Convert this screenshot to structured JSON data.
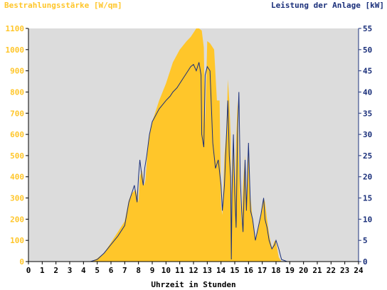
{
  "colors": {
    "irradiance": "#ffc62a",
    "power": "#1a2f7a",
    "plot_background": "#dcdcdc",
    "axis": "#000000"
  },
  "chart_data": {
    "type": "area",
    "left_axis_title": "Bestrahlungsstärke [W/qm]",
    "right_axis_title": "Leistung der Anlage [kW]",
    "xlabel": "Uhrzeit in Stunden",
    "xlim": [
      0,
      24
    ],
    "x_ticks": [
      0,
      1,
      2,
      3,
      4,
      5,
      6,
      7,
      8,
      9,
      10,
      11,
      12,
      13,
      14,
      15,
      16,
      17,
      18,
      19,
      20,
      21,
      22,
      23,
      24
    ],
    "y_left_lim": [
      0,
      1100
    ],
    "y_left_ticks": [
      0,
      100,
      200,
      300,
      400,
      500,
      600,
      700,
      800,
      900,
      1000,
      1100
    ],
    "y_right_lim": [
      0,
      55
    ],
    "y_right_ticks": [
      0,
      5,
      10,
      15,
      20,
      25,
      30,
      35,
      40,
      45,
      50,
      55
    ],
    "series": [
      {
        "name": "Bestrahlungsstärke",
        "unit": "W/qm",
        "axis": "left",
        "style": "area",
        "x": [
          0,
          4.6,
          5.0,
          5.5,
          6.0,
          6.5,
          7.0,
          7.3,
          7.5,
          7.8,
          8.0,
          8.1,
          8.25,
          8.4,
          8.5,
          8.7,
          9.0,
          9.5,
          10.0,
          10.5,
          11.0,
          11.5,
          11.8,
          12.0,
          12.2,
          12.4,
          12.6,
          12.75,
          12.85,
          13.0,
          13.2,
          13.5,
          13.7,
          13.9,
          14.0,
          14.1,
          14.25,
          14.4,
          14.5,
          14.6,
          14.7,
          14.75,
          14.8,
          14.9,
          15.0,
          15.1,
          15.2,
          15.3,
          15.4,
          15.5,
          15.6,
          15.75,
          15.85,
          16.0,
          16.15,
          16.3,
          16.5,
          16.7,
          16.9,
          17.1,
          17.2,
          17.35,
          17.5,
          17.7,
          17.9,
          18.0,
          18.2,
          18.4,
          18.8,
          19.0,
          24
        ],
        "values": [
          0,
          0,
          15,
          40,
          90,
          140,
          190,
          290,
          320,
          340,
          280,
          400,
          430,
          360,
          380,
          560,
          660,
          760,
          840,
          940,
          1000,
          1040,
          1060,
          1080,
          1100,
          1100,
          1090,
          1010,
          640,
          1040,
          1030,
          1000,
          760,
          760,
          260,
          220,
          500,
          620,
          860,
          760,
          600,
          10,
          380,
          620,
          280,
          560,
          760,
          480,
          300,
          180,
          360,
          500,
          260,
          530,
          300,
          200,
          100,
          160,
          220,
          300,
          280,
          200,
          130,
          60,
          100,
          90,
          20,
          0,
          0,
          0,
          0
        ]
      },
      {
        "name": "Leistung der Anlage",
        "unit": "kW",
        "axis": "right",
        "style": "line",
        "x": [
          0,
          4.5,
          5.0,
          5.5,
          6.0,
          6.5,
          7.0,
          7.3,
          7.5,
          7.7,
          7.9,
          8.0,
          8.1,
          8.25,
          8.35,
          8.45,
          8.6,
          8.8,
          9.0,
          9.5,
          10.0,
          10.3,
          10.5,
          10.8,
          11.0,
          11.2,
          11.4,
          11.6,
          11.8,
          12.0,
          12.2,
          12.4,
          12.55,
          12.6,
          12.75,
          12.85,
          13.0,
          13.2,
          13.4,
          13.6,
          13.8,
          14.0,
          14.1,
          14.25,
          14.4,
          14.5,
          14.6,
          14.7,
          14.75,
          14.8,
          14.9,
          15.0,
          15.1,
          15.2,
          15.3,
          15.4,
          15.5,
          15.6,
          15.75,
          15.85,
          16.0,
          16.15,
          16.3,
          16.5,
          16.7,
          16.9,
          17.1,
          17.2,
          17.35,
          17.5,
          17.7,
          17.9,
          18.0,
          18.2,
          18.4,
          18.8,
          19.0,
          24
        ],
        "values": [
          0,
          0,
          0.5,
          2,
          4,
          6,
          8.5,
          14,
          16,
          18,
          14,
          20,
          24,
          20,
          18,
          22,
          25,
          30,
          33,
          36,
          38,
          39,
          40,
          41,
          42,
          43,
          44,
          45,
          46,
          46.5,
          45,
          47,
          44,
          30,
          27,
          44,
          46,
          45,
          28,
          22,
          24,
          18,
          12,
          18,
          30,
          38,
          25,
          20,
          0.5,
          16,
          30,
          16,
          8,
          30,
          40,
          20,
          12,
          7,
          24,
          12,
          28,
          12,
          10,
          5,
          8,
          11,
          15,
          10,
          8,
          5,
          3,
          4,
          5,
          3,
          0.5,
          0,
          0,
          0
        ]
      }
    ]
  }
}
